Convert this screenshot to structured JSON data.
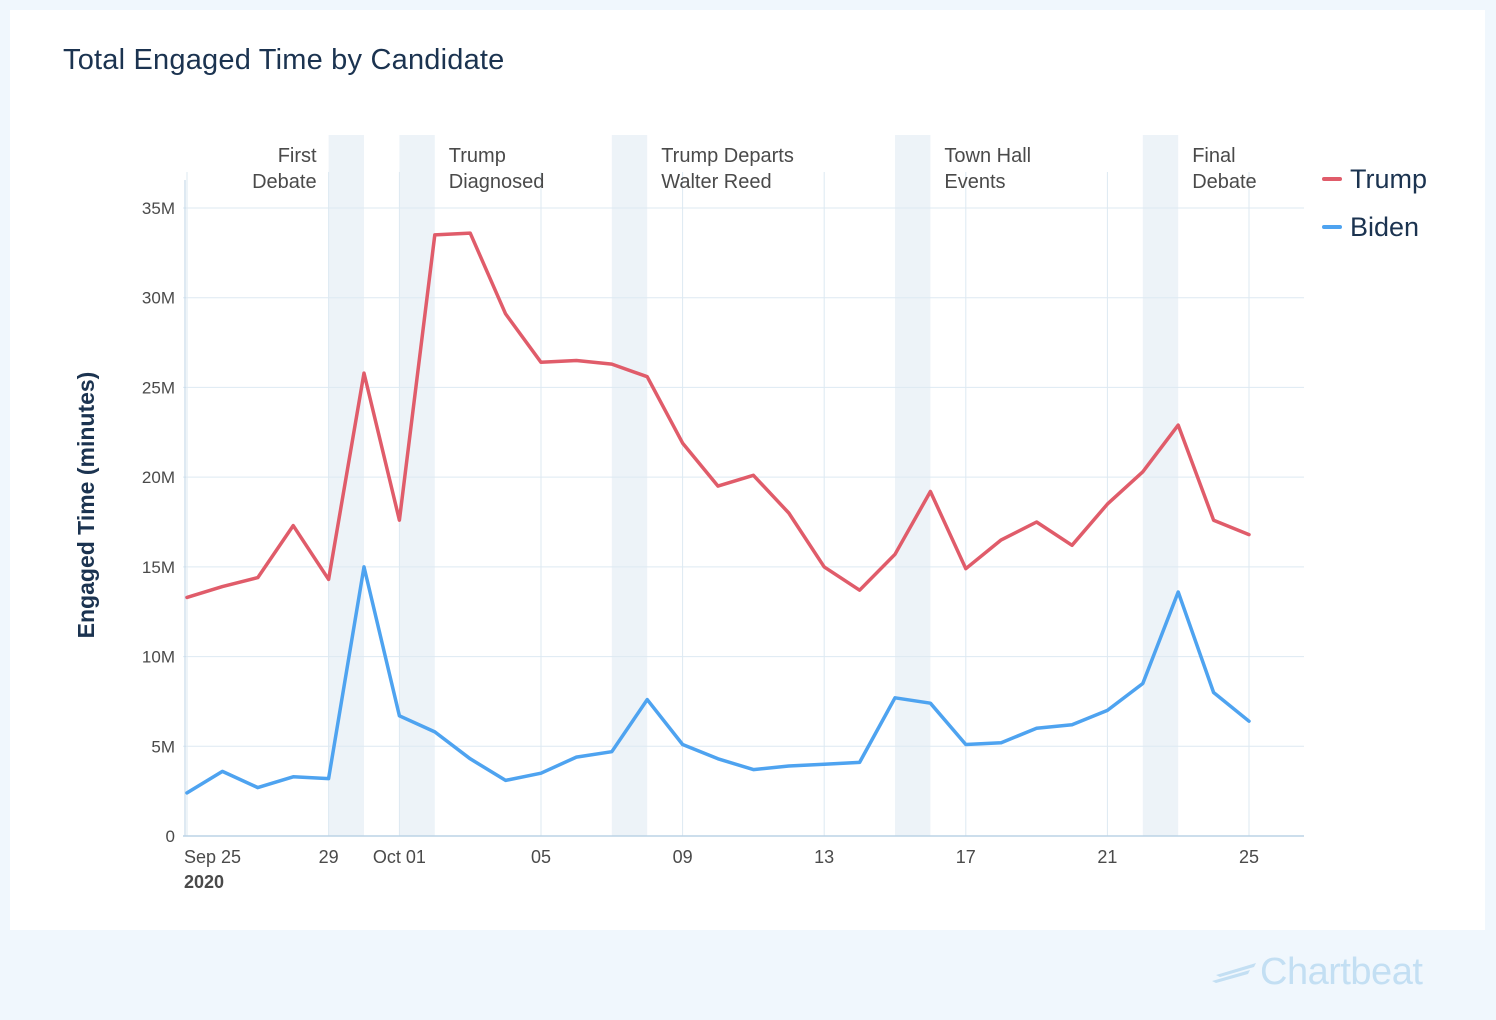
{
  "title": "Total Engaged Time by Candidate",
  "colors": {
    "trump": "#e05c6a",
    "biden": "#4ea3f0",
    "band": "#edf3f8",
    "grid": "#dde9f2",
    "axis": "#bcd3e6",
    "text": "#4a4a4a",
    "title": "#1b3350"
  },
  "logo": {
    "text": "Chartbeat",
    "icon": "chartbeat-logo-icon"
  },
  "chart_data": {
    "type": "line",
    "title": "Total Engaged Time by Candidate",
    "xlabel": "",
    "ylabel": "Engaged Time (minutes)",
    "ylim": [
      0,
      35000000
    ],
    "y_ticks": [
      {
        "value": 0,
        "label": "0"
      },
      {
        "value": 5000000,
        "label": "5M"
      },
      {
        "value": 10000000,
        "label": "10M"
      },
      {
        "value": 15000000,
        "label": "15M"
      },
      {
        "value": 20000000,
        "label": "20M"
      },
      {
        "value": 25000000,
        "label": "25M"
      },
      {
        "value": 30000000,
        "label": "30M"
      },
      {
        "value": 35000000,
        "label": "35M"
      }
    ],
    "x": [
      "2020-09-25",
      "2020-09-26",
      "2020-09-27",
      "2020-09-28",
      "2020-09-29",
      "2020-09-30",
      "2020-10-01",
      "2020-10-02",
      "2020-10-03",
      "2020-10-04",
      "2020-10-05",
      "2020-10-06",
      "2020-10-07",
      "2020-10-08",
      "2020-10-09",
      "2020-10-10",
      "2020-10-11",
      "2020-10-12",
      "2020-10-13",
      "2020-10-14",
      "2020-10-15",
      "2020-10-16",
      "2020-10-17",
      "2020-10-18",
      "2020-10-19",
      "2020-10-20",
      "2020-10-21",
      "2020-10-22",
      "2020-10-23",
      "2020-10-24",
      "2020-10-25"
    ],
    "x_ticks": [
      {
        "date": "2020-09-25",
        "label": "Sep 25",
        "sublabel": "2020"
      },
      {
        "date": "2020-09-29",
        "label": "29"
      },
      {
        "date": "2020-10-01",
        "label": "Oct 01"
      },
      {
        "date": "2020-10-05",
        "label": "05"
      },
      {
        "date": "2020-10-09",
        "label": "09"
      },
      {
        "date": "2020-10-13",
        "label": "13"
      },
      {
        "date": "2020-10-17",
        "label": "17"
      },
      {
        "date": "2020-10-21",
        "label": "21"
      },
      {
        "date": "2020-10-25",
        "label": "25"
      }
    ],
    "series": [
      {
        "name": "Trump",
        "color": "#e05c6a",
        "values": [
          13300000,
          13900000,
          14400000,
          17300000,
          14300000,
          25800000,
          17600000,
          33500000,
          33600000,
          29100000,
          26400000,
          26500000,
          26300000,
          25600000,
          21900000,
          19500000,
          20100000,
          18000000,
          15000000,
          13700000,
          15700000,
          19200000,
          14900000,
          16500000,
          17500000,
          16200000,
          18500000,
          20300000,
          22900000,
          17600000,
          16800000
        ]
      },
      {
        "name": "Biden",
        "color": "#4ea3f0",
        "values": [
          2400000,
          3600000,
          2700000,
          3300000,
          3200000,
          15000000,
          6700000,
          5800000,
          4300000,
          3100000,
          3500000,
          4400000,
          4700000,
          7600000,
          5100000,
          4300000,
          3700000,
          3900000,
          4000000,
          4100000,
          7700000,
          7400000,
          5100000,
          5200000,
          6000000,
          6200000,
          7000000,
          8500000,
          13600000,
          8000000,
          6400000
        ]
      }
    ],
    "events": [
      {
        "label_lines": [
          "First",
          "Debate"
        ],
        "start": "2020-09-29",
        "end": "2020-09-30",
        "label_align": "end"
      },
      {
        "label_lines": [
          "Trump",
          "Diagnosed"
        ],
        "start": "2020-10-01",
        "end": "2020-10-02",
        "label_align": "start"
      },
      {
        "label_lines": [
          "Trump Departs",
          "Walter Reed"
        ],
        "start": "2020-10-07",
        "end": "2020-10-08",
        "label_align": "start"
      },
      {
        "label_lines": [
          "Town Hall",
          "Events"
        ],
        "start": "2020-10-15",
        "end": "2020-10-16",
        "label_align": "start"
      },
      {
        "label_lines": [
          "Final",
          "Debate"
        ],
        "start": "2020-10-22",
        "end": "2020-10-23",
        "label_align": "start"
      }
    ],
    "legend_position": "top-right",
    "grid": true
  }
}
